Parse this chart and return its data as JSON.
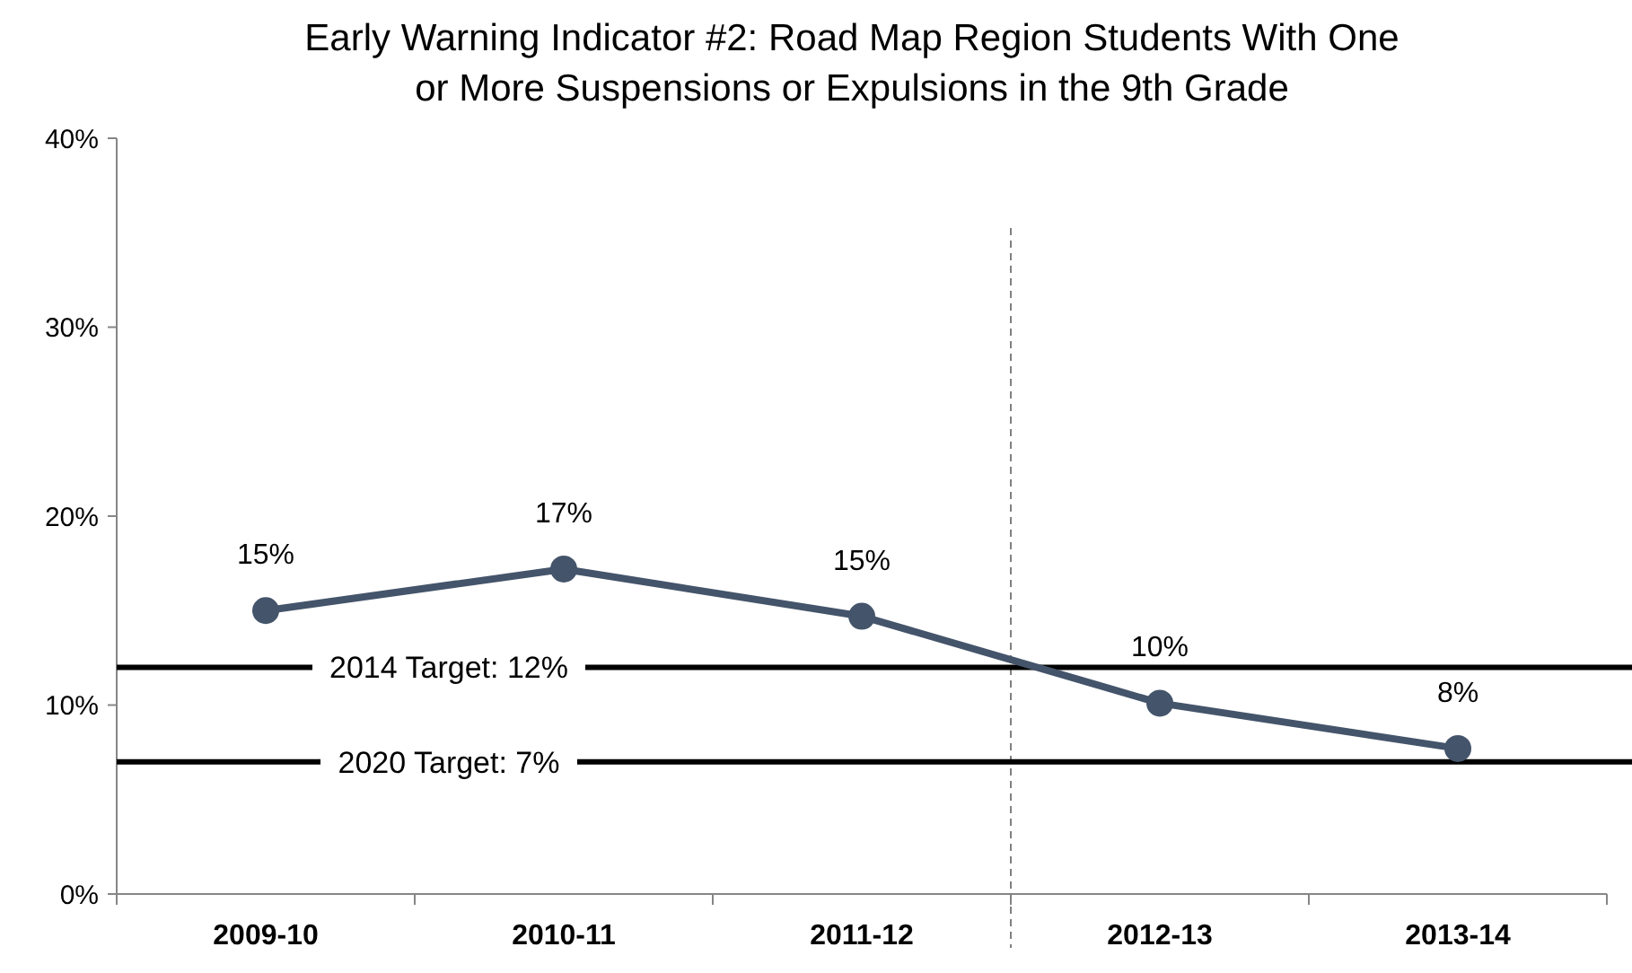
{
  "chart_data": {
    "type": "line",
    "title": "Early Warning Indicator #2: Road Map Region Students With One\nor More Suspensions or Expulsions in the 9th Grade",
    "categories": [
      "2009-10",
      "2010-11",
      "2011-12",
      "2012-13",
      "2013-14"
    ],
    "series": [
      {
        "color": "#44546a",
        "values": [
          15,
          17.2,
          14.7,
          10.1,
          7.7
        ],
        "value_labels": [
          "15%",
          "17%",
          "15%",
          "10%",
          "8%"
        ]
      }
    ],
    "ylim": [
      0,
      40
    ],
    "yticks": [
      {
        "value": 0,
        "label": "0%"
      },
      {
        "value": 10,
        "label": "10%"
      },
      {
        "value": 20,
        "label": "20%"
      },
      {
        "value": 30,
        "label": "30%"
      },
      {
        "value": 40,
        "label": "40%"
      }
    ],
    "ref_lines": [
      {
        "axis": "y",
        "value": 12,
        "label": "2014 Target: 12%",
        "color": "#000000"
      },
      {
        "axis": "y",
        "value": 7,
        "label": "2020 Target: 7%",
        "color": "#000000"
      }
    ],
    "marker": "circle"
  }
}
